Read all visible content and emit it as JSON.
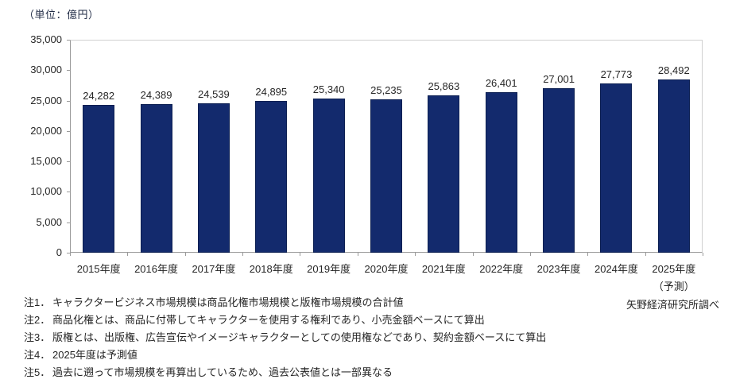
{
  "unit_label": "（単位：億円）",
  "source": "矢野経済研究所調べ",
  "chart_data": {
    "type": "bar",
    "title": "",
    "xlabel": "",
    "ylabel": "億円",
    "categories": [
      "2015年度",
      "2016年度",
      "2017年度",
      "2018年度",
      "2019年度",
      "2020年度",
      "2021年度",
      "2022年度",
      "2023年度",
      "2024年度",
      "2025年度"
    ],
    "forecast_note": {
      "category_index": 10,
      "label": "（予測）"
    },
    "values": [
      24282,
      24389,
      24539,
      24895,
      25340,
      25235,
      25863,
      26401,
      27001,
      27773,
      28492
    ],
    "value_labels": [
      "24,282",
      "24,389",
      "24,539",
      "24,895",
      "25,340",
      "25,235",
      "25,863",
      "26,401",
      "27,001",
      "27,773",
      "28,492"
    ],
    "ylim": [
      0,
      35000
    ],
    "ytick_step": 5000,
    "ytick_labels": [
      "35,000",
      "30,000",
      "25,000",
      "20,000",
      "15,000",
      "10,000",
      "5,000",
      "0"
    ],
    "bar_color": "#132a6d",
    "bar_border_color": "#0c1f52",
    "grid": false,
    "legend": "none"
  },
  "notes": [
    {
      "label": "注1．",
      "text": "キャラクタービジネス市場規模は商品化権市場規模と版権市場規模の合計値"
    },
    {
      "label": "注2．",
      "text": "商品化権とは、商品に付帯してキャラクターを使用する権利であり、小売金額ベースにて算出"
    },
    {
      "label": "注3．",
      "text": "版権とは、出版権、広告宣伝やイメージキャラクターとしての使用権などであり、契約金額ベースにて算出"
    },
    {
      "label": "注4．",
      "text": "2025年度は予測値"
    },
    {
      "label": "注5．",
      "text": "過去に遡って市場規模を再算出しているため、過去公表値とは一部異なる"
    }
  ]
}
